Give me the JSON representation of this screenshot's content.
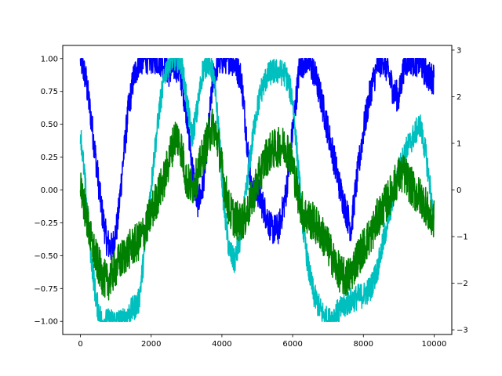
{
  "chart_data": {
    "type": "line",
    "title": "",
    "xlabel": "",
    "ylabel": "",
    "y2label": "",
    "grid": false,
    "legend": "none",
    "xlim": [
      -500,
      10500
    ],
    "ylim": [
      -1.1,
      1.1
    ],
    "y2lim": [
      -3.1,
      3.1
    ],
    "xticks": [
      0,
      2000,
      4000,
      6000,
      8000,
      10000
    ],
    "xtick_labels": [
      "0",
      "2000",
      "4000",
      "6000",
      "8000",
      "10000"
    ],
    "yticks": [
      -1.0,
      -0.75,
      -0.5,
      -0.25,
      0.0,
      0.25,
      0.5,
      0.75,
      1.0
    ],
    "ytick_labels": [
      "−1.00",
      "−0.75",
      "−0.50",
      "−0.25",
      "0.00",
      "0.25",
      "0.50",
      "0.75",
      "1.00"
    ],
    "y2ticks": [
      -3,
      -2,
      -1,
      0,
      1,
      2,
      3
    ],
    "y2tick_labels": [
      "−3",
      "−2",
      "−1",
      "0",
      "1",
      "2",
      "3"
    ],
    "series": [
      {
        "color": "#0000ff",
        "axis": "left",
        "noise": 0.12,
        "x": [
          0,
          150,
          300,
          450,
          600,
          750,
          900,
          1050,
          1200,
          1350,
          1500,
          1650,
          1800,
          1950,
          2100,
          2300,
          2500,
          2700,
          2850,
          3000,
          3150,
          3300,
          3450,
          3600,
          3750,
          3900,
          4100,
          4250,
          4400,
          4550,
          4700,
          4850,
          5000,
          5200,
          5400,
          5600,
          5800,
          6000,
          6200,
          6400,
          6600,
          6800,
          7000,
          7200,
          7350,
          7500,
          7650,
          7800,
          8000,
          8200,
          8400,
          8550,
          8700,
          8850,
          9000,
          9150,
          9300,
          9450,
          9600,
          9750,
          9900,
          10000
        ],
        "y": [
          1.0,
          0.85,
          0.55,
          0.2,
          -0.15,
          -0.4,
          -0.45,
          -0.25,
          0.2,
          0.6,
          0.85,
          0.98,
          1.0,
          1.0,
          1.0,
          0.98,
          0.9,
          0.95,
          0.85,
          0.6,
          0.2,
          -0.1,
          0.0,
          0.4,
          0.85,
          0.98,
          1.0,
          1.0,
          0.95,
          0.85,
          0.4,
          -0.05,
          0.0,
          -0.15,
          -0.3,
          -0.3,
          -0.05,
          0.45,
          0.95,
          1.0,
          0.9,
          0.7,
          0.45,
          0.2,
          0.0,
          -0.15,
          -0.3,
          0.05,
          0.45,
          0.75,
          0.95,
          1.0,
          0.9,
          0.75,
          0.7,
          0.95,
          1.0,
          0.98,
          0.98,
          0.9,
          0.85,
          0.85
        ]
      },
      {
        "color": "#00bfbf",
        "axis": "left",
        "noise": 0.1,
        "x": [
          0,
          150,
          300,
          450,
          600,
          750,
          900,
          1050,
          1200,
          1350,
          1500,
          1650,
          1800,
          1950,
          2100,
          2250,
          2400,
          2550,
          2700,
          2850,
          3000,
          3150,
          3300,
          3450,
          3600,
          3750,
          3900,
          4050,
          4200,
          4350,
          4500,
          4650,
          4800,
          4950,
          5100,
          5250,
          5400,
          5600,
          5800,
          6000,
          6150,
          6300,
          6450,
          6600,
          6800,
          7000,
          7200,
          7400,
          7600,
          7800,
          8000,
          8200,
          8400,
          8600,
          8800,
          9000,
          9200,
          9400,
          9600,
          9750,
          9900,
          10000
        ],
        "y": [
          0.45,
          0.0,
          -0.5,
          -0.85,
          -1.0,
          -1.0,
          -1.0,
          -1.0,
          -1.0,
          -0.95,
          -0.9,
          -0.85,
          -0.5,
          -0.1,
          0.3,
          0.65,
          0.9,
          1.0,
          1.0,
          0.98,
          0.7,
          0.4,
          0.6,
          0.9,
          0.98,
          0.9,
          0.5,
          -0.1,
          -0.45,
          -0.55,
          -0.4,
          -0.1,
          0.25,
          0.55,
          0.75,
          0.85,
          0.9,
          0.9,
          0.88,
          0.7,
          0.2,
          -0.3,
          -0.6,
          -0.8,
          -0.92,
          -1.0,
          -0.95,
          -0.9,
          -0.85,
          -0.82,
          -0.8,
          -0.75,
          -0.6,
          -0.35,
          -0.1,
          0.15,
          0.3,
          0.4,
          0.5,
          0.3,
          0.0,
          -0.3
        ]
      },
      {
        "color": "#008000",
        "axis": "right",
        "noise": 0.15,
        "x": [
          0,
          150,
          300,
          450,
          600,
          750,
          900,
          1050,
          1200,
          1350,
          1500,
          1650,
          1800,
          1950,
          2100,
          2250,
          2400,
          2550,
          2700,
          2850,
          3000,
          3150,
          3300,
          3450,
          3600,
          3750,
          3900,
          4050,
          4200,
          4350,
          4500,
          4650,
          4800,
          4950,
          5100,
          5250,
          5400,
          5550,
          5700,
          5850,
          6000,
          6150,
          6300,
          6450,
          6600,
          6750,
          6900,
          7050,
          7200,
          7350,
          7500,
          7650,
          7800,
          7950,
          8100,
          8250,
          8400,
          8550,
          8700,
          8850,
          9000,
          9150,
          9300,
          9450,
          9600,
          9750,
          9900,
          10000
        ],
        "y": [
          0.2,
          -0.5,
          -1.1,
          -1.5,
          -1.8,
          -2.0,
          -1.8,
          -1.6,
          -1.45,
          -1.3,
          -1.2,
          -1.1,
          -0.9,
          -0.6,
          -0.3,
          0.0,
          0.3,
          0.8,
          1.2,
          0.9,
          0.2,
          0.05,
          0.3,
          0.7,
          1.1,
          1.4,
          1.0,
          0.2,
          -0.4,
          -0.6,
          -0.7,
          -0.6,
          -0.3,
          0.05,
          0.4,
          0.7,
          0.85,
          0.9,
          0.95,
          0.9,
          0.55,
          -0.1,
          -0.5,
          -0.6,
          -0.7,
          -0.85,
          -1.05,
          -1.3,
          -1.6,
          -1.8,
          -1.9,
          -1.8,
          -1.5,
          -1.3,
          -1.1,
          -0.9,
          -0.6,
          -0.4,
          -0.2,
          0.05,
          0.3,
          0.35,
          0.15,
          -0.05,
          -0.15,
          -0.3,
          -0.65,
          -0.6
        ]
      }
    ]
  }
}
